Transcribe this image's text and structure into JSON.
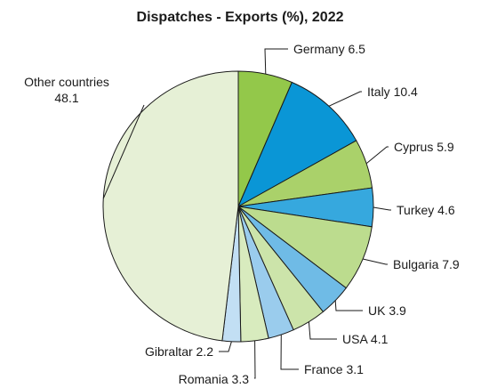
{
  "chart_data": {
    "type": "pie",
    "title": "Dispatches - Exports (%), 2022",
    "slices": [
      {
        "label": "Germany",
        "value_text": "6.5",
        "value": 6.5,
        "color": "#93c84a"
      },
      {
        "label": "Italy",
        "value_text": "10.4",
        "value": 10.4,
        "color": "#0a96d6"
      },
      {
        "label": "Cyprus",
        "value_text": "5.9",
        "value": 5.9,
        "color": "#aad16a"
      },
      {
        "label": "Turkey",
        "value_text": "4.6",
        "value": 4.6,
        "color": "#36a8de"
      },
      {
        "label": "Bulgaria",
        "value_text": "7.9",
        "value": 7.9,
        "color": "#bcdc8e"
      },
      {
        "label": "UK",
        "value_text": "3.9",
        "value": 3.9,
        "color": "#6fbbe6"
      },
      {
        "label": "USA",
        "value_text": "4.1",
        "value": 4.1,
        "color": "#cce4aa"
      },
      {
        "label": "France",
        "value_text": "3.1",
        "value": 3.1,
        "color": "#9acced"
      },
      {
        "label": "Romania",
        "value_text": "3.3",
        "value": 3.3,
        "color": "#d8ebbe"
      },
      {
        "label": "Gibraltar",
        "value_text": "2.2",
        "value": 2.2,
        "color": "#c2dff4"
      },
      {
        "label": "Other countries",
        "value_text": "48.1",
        "value": 48.1,
        "color": "#e6f0d6"
      }
    ]
  }
}
